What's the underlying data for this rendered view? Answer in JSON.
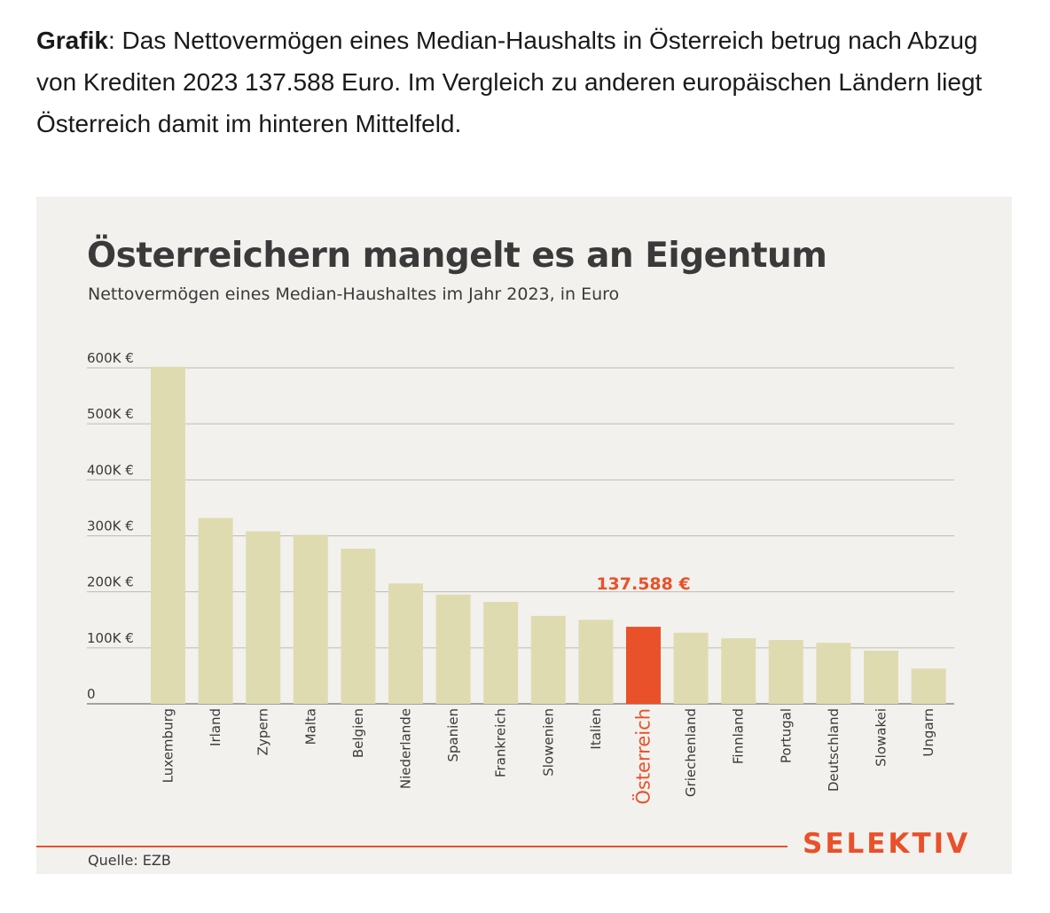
{
  "intro": {
    "bold": "Grafik",
    "text": ": Das Nettovermögen eines Median-Haushalts in Österreich betrug nach Abzug von Krediten 2023 137.588 Euro. Im Vergleich zu anderen europäischen Ländern liegt Österreich damit im hinteren Mittelfeld."
  },
  "chart_data": {
    "type": "bar",
    "title": "Österreichern mangelt es an Eigentum",
    "subtitle": "Nettovermögen eines Median-Haushaltes im Jahr 2023, in Euro",
    "xlabel": "",
    "ylabel": "",
    "ylim": [
      0,
      600000
    ],
    "yticks": [
      0,
      100000,
      200000,
      300000,
      400000,
      500000,
      600000
    ],
    "ytick_labels": [
      "0",
      "100K €",
      "200K €",
      "300K €",
      "400K €",
      "500K €",
      "600K €"
    ],
    "grid": true,
    "categories": [
      "Luxemburg",
      "Irland",
      "Zypern",
      "Malta",
      "Belgien",
      "Niederlande",
      "Spanien",
      "Frankreich",
      "Slowenien",
      "Italien",
      "Österreich",
      "Griechenland",
      "Finnland",
      "Portugal",
      "Deutschland",
      "Slowakei",
      "Ungarn"
    ],
    "values": [
      602000,
      332000,
      308000,
      302000,
      277000,
      215000,
      195000,
      182000,
      157000,
      150000,
      137588,
      127000,
      117000,
      114000,
      109000,
      95000,
      63000
    ],
    "highlight": "Österreich",
    "highlight_label": "137.588 €",
    "colors": {
      "bar": "#dfdbb1",
      "highlight": "#e8512a",
      "grid": "#bdbbb6",
      "text": "#3a3a3a"
    }
  },
  "footer": {
    "source": "Quelle: EZB",
    "brand": "SELEKTIV"
  }
}
